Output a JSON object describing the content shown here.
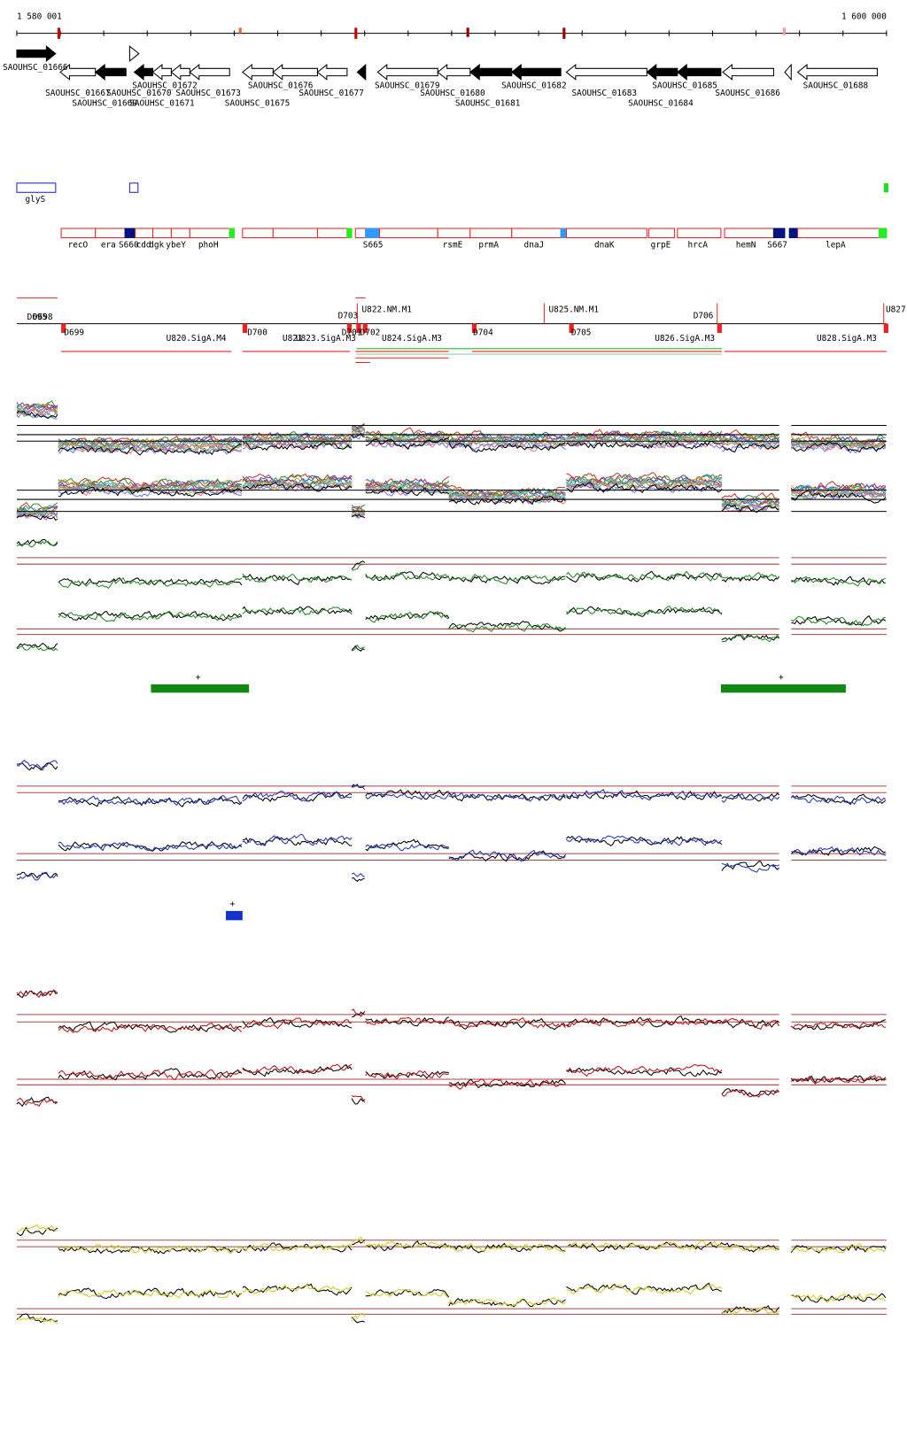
{
  "ruler": {
    "start": "1 580 001",
    "end": "1 600 000"
  },
  "genes": [
    "SAOUHSC_01666",
    "SAOUHSC_01667",
    "SAOUHSC_01669",
    "SAOUHSC_01670",
    "SAOUHSC_01671",
    "SAOUHSC_01672",
    "SAOUHSC_01673",
    "SAOUHSC_01675",
    "SAOUHSC_01676",
    "SAOUHSC_01677",
    "SAOUHSC_01679",
    "SAOUHSC_01680",
    "SAOUHSC_01681",
    "SAOUHSC_01682",
    "SAOUHSC_01683",
    "SAOUHSC_01684",
    "SAOUHSC_01685",
    "SAOUHSC_01686",
    "SAOUHSC_01688"
  ],
  "rna": [
    "glyS"
  ],
  "annotations": [
    "recO",
    "era",
    "S660",
    "cdd",
    "dgk",
    "ybeY",
    "phoH",
    "S665",
    "rsmE",
    "prmA",
    "dnaJ",
    "dnaK",
    "grpE",
    "hrcA",
    "hemN",
    "S667",
    "lepA"
  ],
  "segments": [
    "D695",
    "D698",
    "D699",
    "U820.SigA.M4",
    "D700",
    "U821",
    "U823.SigA.M3",
    "D701",
    "D702",
    "D703",
    "U822.NM.M1",
    "U824.SigA.M3",
    "D704",
    "U825.NM.M1",
    "D705",
    "D706",
    "U826.SigA.M3",
    "U827",
    "U828.SigA.M3"
  ],
  "plus_signs": [
    "+",
    "+",
    "+"
  ]
}
